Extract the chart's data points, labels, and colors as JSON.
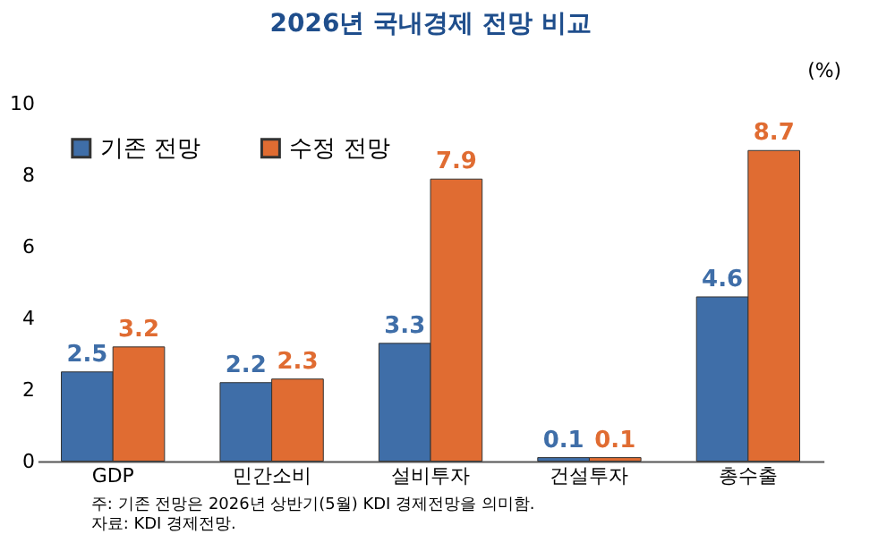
{
  "chart_data": {
    "type": "bar",
    "title": "2026년 국내경제 전망 비교",
    "ylabel": "(%)",
    "categories": [
      "GDP",
      "민간소비",
      "설비투자",
      "건설투자",
      "총수출"
    ],
    "series": [
      {
        "name": "기존 전망",
        "color": "#3f6ea8",
        "values": [
          2.5,
          2.2,
          3.3,
          0.1,
          4.6
        ]
      },
      {
        "name": "수정 전망",
        "color": "#e06c32",
        "values": [
          3.2,
          2.3,
          7.9,
          0.1,
          8.7
        ]
      }
    ],
    "ylim": [
      0,
      10
    ],
    "yticks": [
      0,
      2,
      4,
      6,
      8,
      10
    ],
    "grid": false,
    "legend": "top left",
    "data_labels": true,
    "annotations": [
      "주: 기존 전망은 2026년 상반기(5월) KDI 경제전망을 의미함.",
      "자료: KDI 경제전망."
    ]
  }
}
